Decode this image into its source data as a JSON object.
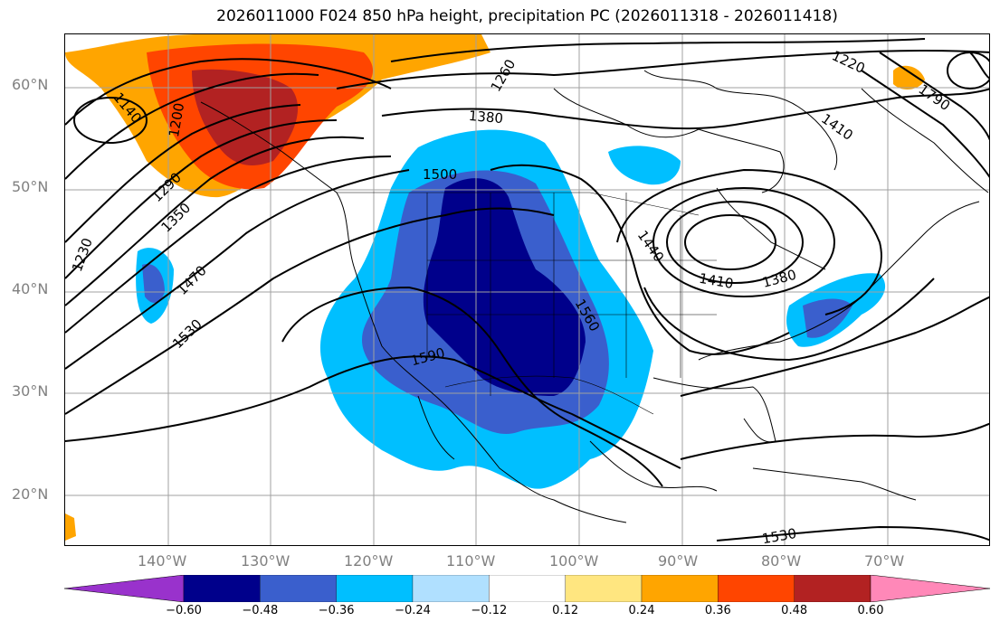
{
  "title": "2026011000 F024 850 hPa height, precipitation PC (2026011318 - 2026011418)",
  "lat_labels": [
    "60°N",
    "50°N",
    "40°N",
    "30°N",
    "20°N"
  ],
  "lon_labels": [
    "140°W",
    "130°W",
    "120°W",
    "110°W",
    "100°W",
    "90°W",
    "80°W",
    "70°W"
  ],
  "contour_labels": [
    "1260",
    "1220",
    "1380",
    "1410",
    "1500",
    "1440",
    "1410",
    "1380",
    "1140",
    "1200",
    "1290",
    "1350",
    "1470",
    "1530",
    "1560",
    "1590",
    "1230",
    "1530",
    "1790"
  ],
  "colorbar": {
    "ticks": [
      "−0.60",
      "−0.48",
      "−0.36",
      "−0.24",
      "−0.12",
      "0.12",
      "0.24",
      "0.36",
      "0.48",
      "0.60"
    ],
    "colors": [
      "#9932cc",
      "#00008b",
      "#3a5fcd",
      "#00bfff",
      "#b0e0ff",
      "#ffffff",
      "#ffe680",
      "#ffa500",
      "#ff4500",
      "#b22222",
      "#ff88b8"
    ]
  },
  "chart_data": {
    "type": "map",
    "title": "2026011000 F024 850 hPa height, precipitation PC (2026011318 - 2026011418)",
    "field": "850 hPa height contours with precipitation PC shading",
    "lon_range": [
      -150,
      -60
    ],
    "lat_range": [
      15,
      65
    ],
    "grid": true,
    "colorbar_levels": [
      -0.6,
      -0.48,
      -0.36,
      -0.24,
      -0.12,
      0.12,
      0.24,
      0.36,
      0.48,
      0.6
    ],
    "height_contour_labels": [
      1140,
      1200,
      1220,
      1230,
      1260,
      1290,
      1350,
      1380,
      1410,
      1440,
      1470,
      1500,
      1530,
      1560,
      1590,
      1790
    ]
  }
}
